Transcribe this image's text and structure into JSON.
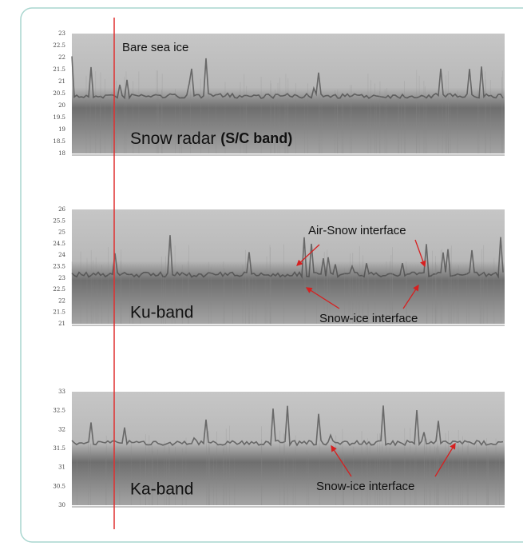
{
  "annotations": {
    "bare_sea_ice": "Bare sea ice"
  },
  "panels": [
    {
      "title": "Snow radar",
      "title_bold": "(S/C band)",
      "y_ticks": [
        "23",
        "22.5",
        "22",
        "21.5",
        "21",
        "20.5",
        "20",
        "19.5",
        "19",
        "18.5",
        "18"
      ],
      "labels": []
    },
    {
      "title": "Ku-band",
      "y_ticks": [
        "26",
        "25.5",
        "25",
        "24.5",
        "24",
        "23.5",
        "23",
        "22.5",
        "22",
        "21.5",
        "21"
      ],
      "labels": [
        "Air-Snow interface",
        "Snow-ice interface"
      ]
    },
    {
      "title": "Ka-band",
      "y_ticks": [
        "33",
        "32.5",
        "32",
        "31.5",
        "31",
        "30.5",
        "30"
      ],
      "labels": [
        "Snow-ice interface"
      ]
    }
  ]
}
